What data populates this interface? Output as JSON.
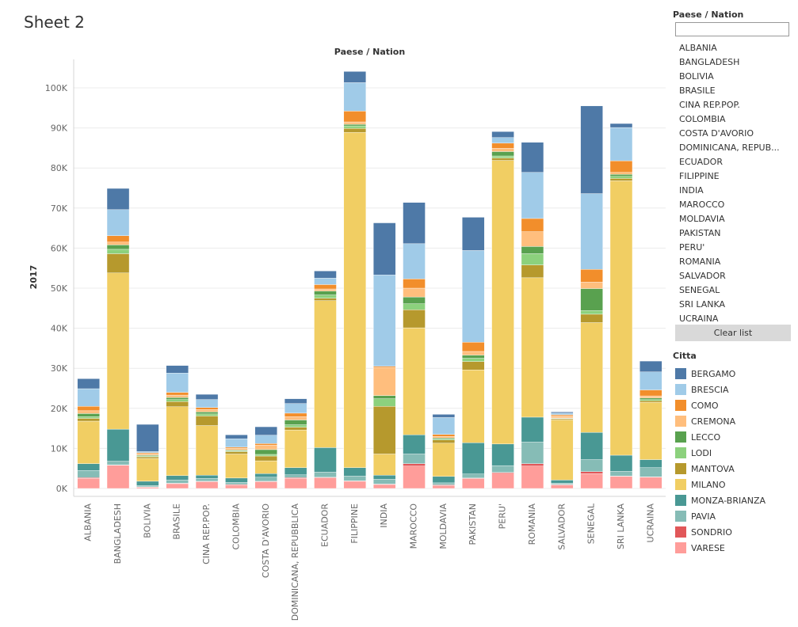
{
  "sheet_title": "Sheet 2",
  "filter": {
    "title": "Paese / Nation",
    "search_value": "",
    "items": [
      "ALBANIA",
      "BANGLADESH",
      "BOLIVIA",
      "BRASILE",
      "CINA REP.POP.",
      "COLOMBIA",
      "COSTA D'AVORIO",
      "DOMINICANA, REPUB...",
      "ECUADOR",
      "FILIPPINE",
      "INDIA",
      "MAROCCO",
      "MOLDAVIA",
      "PAKISTAN",
      "PERU'",
      "ROMANIA",
      "SALVADOR",
      "SENEGAL",
      "SRI LANKA",
      "UCRAINA"
    ],
    "clear_label": "Clear list"
  },
  "legend": {
    "title": "Citta",
    "items": [
      {
        "name": "BERGAMO",
        "color": "#4e79a7"
      },
      {
        "name": "BRESCIA",
        "color": "#a0cbe8"
      },
      {
        "name": "COMO",
        "color": "#f28e2b"
      },
      {
        "name": "CREMONA",
        "color": "#ffbe7d"
      },
      {
        "name": "LECCO",
        "color": "#59a14f"
      },
      {
        "name": "LODI",
        "color": "#8cd17d"
      },
      {
        "name": "MANTOVA",
        "color": "#b6992d"
      },
      {
        "name": "MILANO",
        "color": "#f1ce63"
      },
      {
        "name": "MONZA-BRIANZA",
        "color": "#499894"
      },
      {
        "name": "PAVIA",
        "color": "#86bcb6"
      },
      {
        "name": "SONDRIO",
        "color": "#e15759"
      },
      {
        "name": "VARESE",
        "color": "#ff9d9a"
      }
    ]
  },
  "chart_data": {
    "type": "bar",
    "stacked": true,
    "title": "Paese / Nation",
    "ylabel": "2017",
    "xlabel": "",
    "ylim": [
      0,
      104000
    ],
    "y_ticks": [
      0,
      10000,
      20000,
      30000,
      40000,
      50000,
      60000,
      70000,
      80000,
      90000,
      100000
    ],
    "y_tick_labels": [
      "0K",
      "10K",
      "20K",
      "30K",
      "40K",
      "50K",
      "60K",
      "70K",
      "80K",
      "90K",
      "100K"
    ],
    "grid": true,
    "legend_position": "right",
    "categories": [
      "ALBANIA",
      "BANGLADESH",
      "BOLIVIA",
      "BRASILE",
      "CINA REP.POP.",
      "COLOMBIA",
      "COSTA D'AVORIO",
      "DOMINICANA, REPUBBLICA",
      "ECUADOR",
      "FILIPPINE",
      "INDIA",
      "MAROCCO",
      "MOLDAVIA",
      "PAKISTAN",
      "PERU'",
      "ROMANIA",
      "SALVADOR",
      "SENEGAL",
      "SRI LANKA",
      "UCRAINA"
    ],
    "series": [
      {
        "name": "VARESE",
        "values": [
          2500,
          5800,
          300,
          1200,
          1700,
          800,
          1700,
          2500,
          2700,
          1800,
          1000,
          5600,
          700,
          2500,
          3800,
          5600,
          900,
          3700,
          3000,
          2800
        ]
      },
      {
        "name": "SONDRIO",
        "values": [
          200,
          100,
          100,
          100,
          100,
          200,
          100,
          200,
          100,
          100,
          100,
          600,
          200,
          100,
          200,
          600,
          100,
          500,
          100,
          100
        ]
      },
      {
        "name": "PAVIA",
        "values": [
          1800,
          900,
          300,
          800,
          700,
          500,
          1000,
          700,
          1300,
          1200,
          1200,
          2400,
          500,
          1000,
          1700,
          5400,
          300,
          3000,
          1200,
          2300
        ]
      },
      {
        "name": "MONZA-BRIANZA",
        "values": [
          1700,
          8000,
          1100,
          1100,
          800,
          1100,
          900,
          1800,
          6100,
          2100,
          1000,
          4800,
          1600,
          7800,
          5400,
          6200,
          800,
          6800,
          4000,
          2000
        ]
      },
      {
        "name": "MILANO",
        "values": [
          10600,
          39000,
          5700,
          17200,
          12400,
          6000,
          3200,
          9400,
          36700,
          83700,
          5300,
          26700,
          8300,
          18200,
          70800,
          34800,
          15000,
          27400,
          68500,
          14300
        ]
      },
      {
        "name": "MANTOVA",
        "values": [
          700,
          4800,
          400,
          1300,
          2400,
          600,
          1200,
          700,
          600,
          1000,
          11900,
          4500,
          800,
          2100,
          600,
          3200,
          300,
          2100,
          600,
          400
        ]
      },
      {
        "name": "LODI",
        "values": [
          400,
          1100,
          200,
          500,
          500,
          200,
          400,
          600,
          800,
          600,
          1900,
          1500,
          200,
          800,
          500,
          2800,
          100,
          900,
          500,
          300
        ]
      },
      {
        "name": "LECCO",
        "values": [
          800,
          1100,
          200,
          500,
          500,
          200,
          1200,
          1200,
          1000,
          400,
          800,
          1700,
          300,
          800,
          1100,
          1800,
          100,
          5500,
          500,
          400
        ]
      },
      {
        "name": "CREMONA",
        "values": [
          700,
          700,
          300,
          600,
          600,
          400,
          1100,
          800,
          500,
          600,
          7000,
          2200,
          400,
          900,
          800,
          3700,
          500,
          1600,
          500,
          500
        ]
      },
      {
        "name": "COMO",
        "values": [
          1100,
          1600,
          300,
          700,
          500,
          300,
          400,
          900,
          1100,
          2700,
          300,
          2300,
          500,
          2300,
          1300,
          3300,
          300,
          3200,
          2900,
          1500
        ]
      },
      {
        "name": "BRESCIA",
        "values": [
          4400,
          6500,
          300,
          4800,
          2000,
          2100,
          2100,
          2400,
          1600,
          7100,
          22800,
          8800,
          4200,
          22900,
          1400,
          11500,
          400,
          18900,
          8300,
          4500
        ]
      },
      {
        "name": "BERGAMO",
        "values": [
          2500,
          5300,
          6800,
          1900,
          1300,
          1000,
          2100,
          1200,
          1800,
          2800,
          13000,
          10300,
          800,
          8300,
          1500,
          7500,
          300,
          21900,
          1000,
          2700
        ]
      }
    ]
  }
}
